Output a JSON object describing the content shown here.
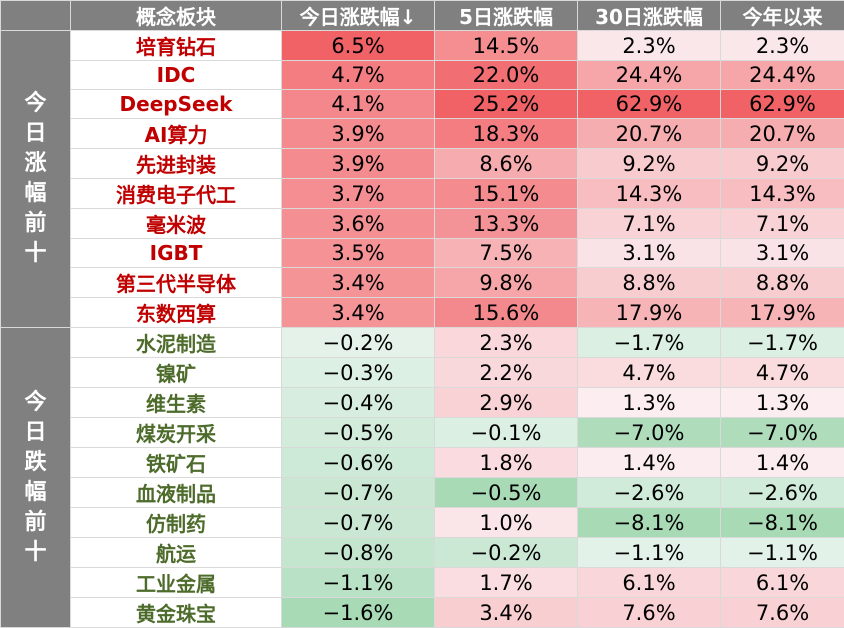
{
  "headers": [
    "概念板块",
    "今日涨跌幅↓",
    "5日涨跌幅",
    "30日涨跌幅",
    "今年以来"
  ],
  "groups": [
    {
      "label": "今日涨幅前十",
      "direction": "up",
      "rows": [
        {
          "name": "培育钻石",
          "today": "6.5%",
          "d5": "14.5%",
          "d30": "2.3%",
          "ytd": "2.3%"
        },
        {
          "name": "IDC",
          "today": "4.7%",
          "d5": "22.0%",
          "d30": "24.4%",
          "ytd": "24.4%"
        },
        {
          "name": "DeepSeek",
          "today": "4.1%",
          "d5": "25.2%",
          "d30": "62.9%",
          "ytd": "62.9%"
        },
        {
          "name": "AI算力",
          "today": "3.9%",
          "d5": "18.3%",
          "d30": "20.7%",
          "ytd": "20.7%"
        },
        {
          "name": "先进封装",
          "today": "3.9%",
          "d5": "8.6%",
          "d30": "9.2%",
          "ytd": "9.2%"
        },
        {
          "name": "消费电子代工",
          "today": "3.7%",
          "d5": "15.1%",
          "d30": "14.3%",
          "ytd": "14.3%"
        },
        {
          "name": "毫米波",
          "today": "3.6%",
          "d5": "13.3%",
          "d30": "7.1%",
          "ytd": "7.1%"
        },
        {
          "name": "IGBT",
          "today": "3.5%",
          "d5": "7.5%",
          "d30": "3.1%",
          "ytd": "3.1%"
        },
        {
          "name": "第三代半导体",
          "today": "3.4%",
          "d5": "9.8%",
          "d30": "8.8%",
          "ytd": "8.8%"
        },
        {
          "name": "东数西算",
          "today": "3.4%",
          "d5": "15.6%",
          "d30": "17.9%",
          "ytd": "17.9%"
        }
      ]
    },
    {
      "label": "今日跌幅前十",
      "direction": "down",
      "rows": [
        {
          "name": "水泥制造",
          "today": "−0.2%",
          "d5": "2.3%",
          "d30": "−1.7%",
          "ytd": "−1.7%"
        },
        {
          "name": "镍矿",
          "today": "−0.3%",
          "d5": "2.2%",
          "d30": "4.7%",
          "ytd": "4.7%"
        },
        {
          "name": "维生素",
          "today": "−0.4%",
          "d5": "2.9%",
          "d30": "1.3%",
          "ytd": "1.3%"
        },
        {
          "name": "煤炭开采",
          "today": "−0.5%",
          "d5": "−0.1%",
          "d30": "−7.0%",
          "ytd": "−7.0%"
        },
        {
          "name": "铁矿石",
          "today": "−0.6%",
          "d5": "1.8%",
          "d30": "1.4%",
          "ytd": "1.4%"
        },
        {
          "name": "血液制品",
          "today": "−0.7%",
          "d5": "−0.5%",
          "d30": "−2.6%",
          "ytd": "−2.6%"
        },
        {
          "name": "仿制药",
          "today": "−0.7%",
          "d5": "1.0%",
          "d30": "−8.1%",
          "ytd": "−8.1%"
        },
        {
          "name": "航运",
          "today": "−0.8%",
          "d5": "−0.2%",
          "d30": "−1.1%",
          "ytd": "−1.1%"
        },
        {
          "name": "工业金属",
          "today": "−1.1%",
          "d5": "1.7%",
          "d30": "6.1%",
          "ytd": "6.1%"
        },
        {
          "name": "黄金珠宝",
          "today": "−1.6%",
          "d5": "3.4%",
          "d30": "7.6%",
          "ytd": "7.6%"
        }
      ]
    }
  ],
  "colors": {
    "header_bg": "#808080",
    "up_text": "#c00000",
    "down_text": "#4d6b2a",
    "pos_scale_max": "#f05a5e",
    "neg_scale_max": "#63be7b",
    "neutral": "#fcfcff"
  }
}
